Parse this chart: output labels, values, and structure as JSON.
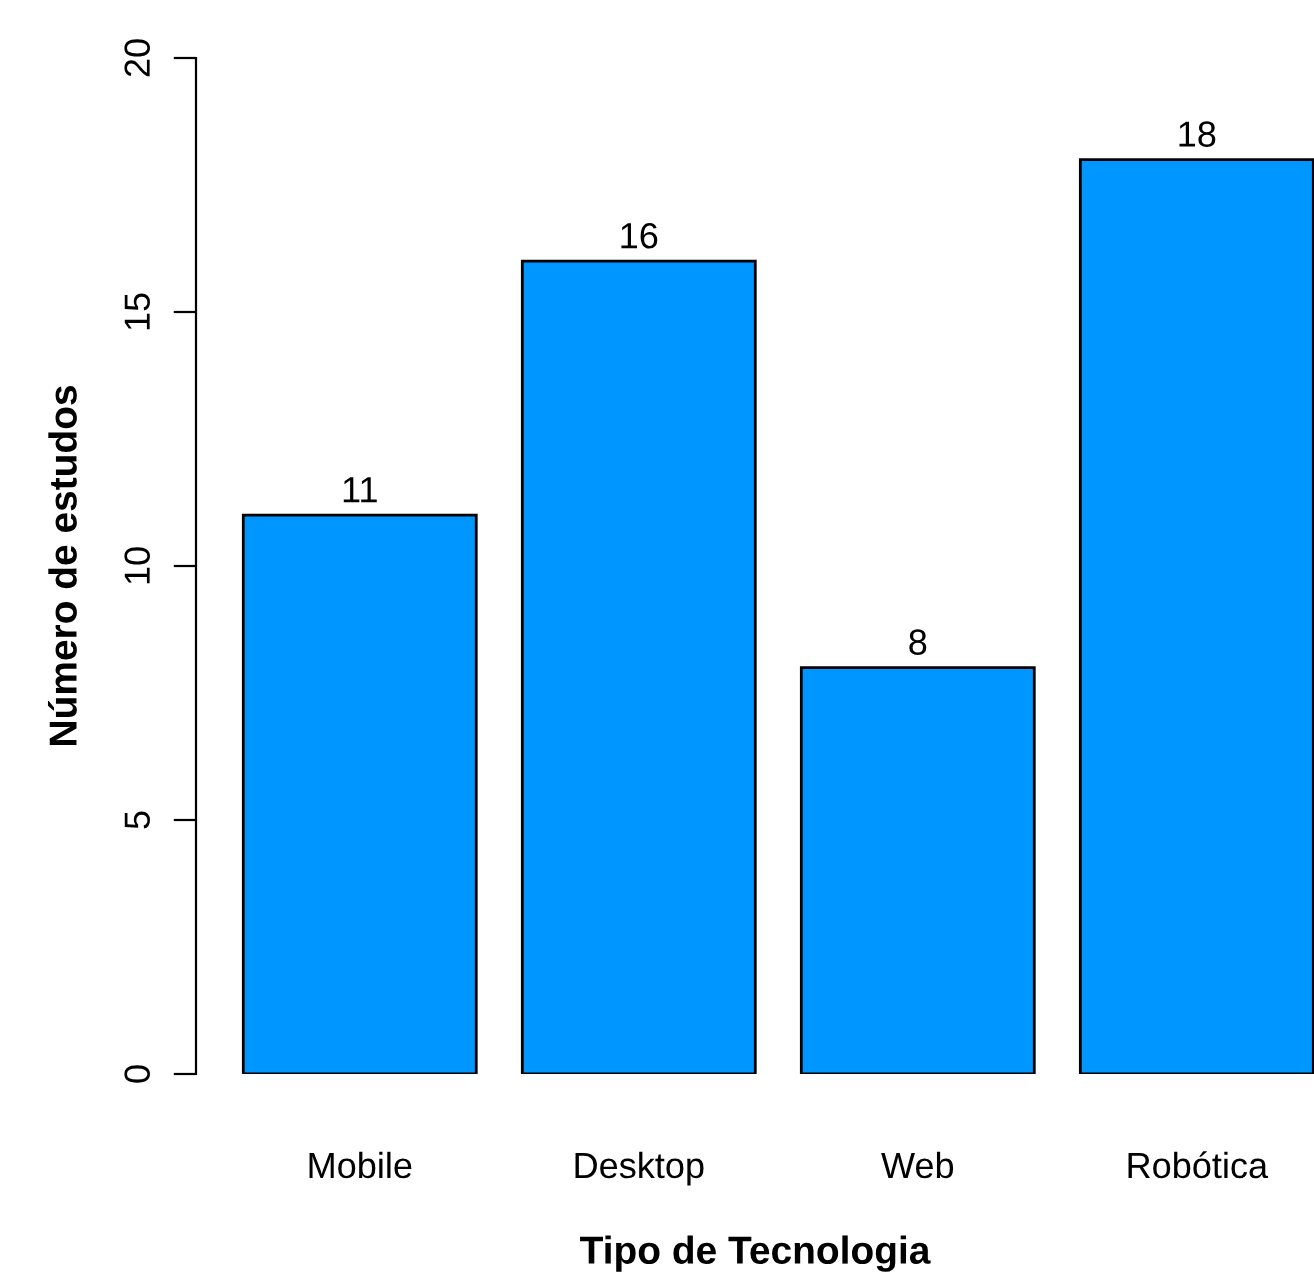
{
  "chart_data": {
    "type": "bar",
    "xlabel": "Tipo de Tecnologia",
    "ylabel": "Número de estudos",
    "categories": [
      "Mobile",
      "Desktop",
      "Web",
      "Robótica"
    ],
    "values": [
      11,
      16,
      8,
      18
    ],
    "color": "#0096ff",
    "ylim": [
      0,
      20
    ],
    "yticks": [
      0,
      5,
      10,
      15,
      20
    ],
    "data_labels": true,
    "grid": false,
    "legend": false
  }
}
